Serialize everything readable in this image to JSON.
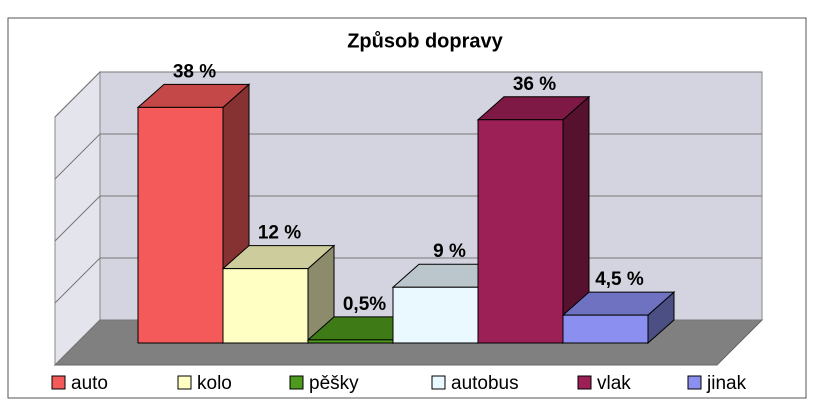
{
  "chart_data": {
    "type": "bar3d",
    "title": "Způsob dopravy",
    "categories": [
      "auto",
      "kolo",
      "pěšky",
      "autobus",
      "vlak",
      "jinak"
    ],
    "values": [
      38,
      12,
      0.5,
      9,
      36,
      4.5
    ],
    "value_labels": [
      "38 %",
      "12 %",
      "0,5%",
      "9 %",
      "36 %",
      "4,5 %"
    ],
    "colors": [
      "#f55a5a",
      "#ffffc4",
      "#4d9a1c",
      "#eaf8ff",
      "#9c1f55",
      "#8a8ff0"
    ],
    "ylim": [
      0,
      40
    ],
    "yticks": [
      0,
      10,
      20,
      30,
      40
    ],
    "grid": true
  }
}
